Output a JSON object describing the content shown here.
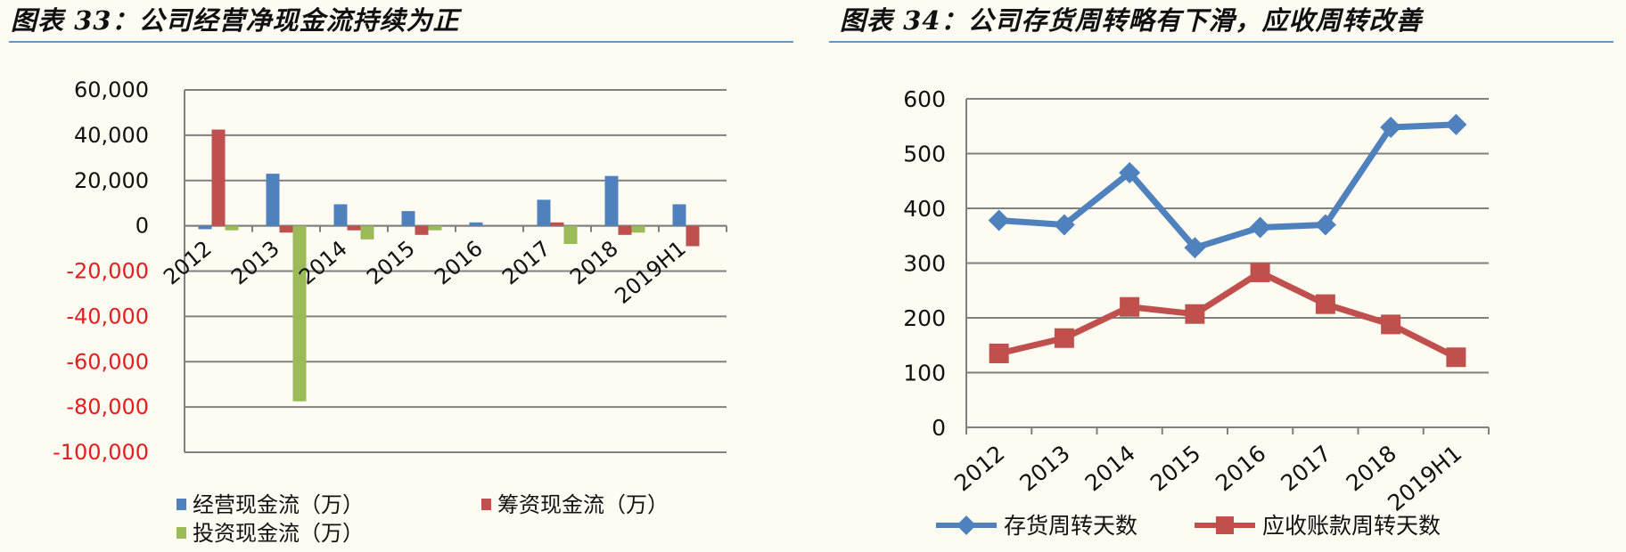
{
  "figures": [
    {
      "title": "图表 33：公司经营净现金流持续为正"
    },
    {
      "title": "图表 34：公司存货周转略有下滑，应收周转改善"
    }
  ],
  "colors": {
    "op": "#4f81bd",
    "fin": "#c0504d",
    "inv": "#9bbb59",
    "line1": "#4f81bd",
    "line2": "#c0504d",
    "neg_tick": "#e02020",
    "grid": "#808080",
    "rule": "#5b9bd5"
  },
  "chart_data": [
    {
      "type": "bar",
      "categories": [
        "2012",
        "2013",
        "2014",
        "2015",
        "2016",
        "2017",
        "2018",
        "2019H1"
      ],
      "series": [
        {
          "name": "经营现金流（万）",
          "values": [
            -1500,
            23000,
            9500,
            6500,
            1500,
            11500,
            22000,
            9500
          ]
        },
        {
          "name": "筹资现金流（万）",
          "values": [
            42500,
            -3000,
            -2000,
            -4000,
            0,
            1500,
            -4000,
            -9000
          ]
        },
        {
          "name": "投资现金流（万）",
          "values": [
            -2000,
            -77500,
            -6000,
            -2000,
            0,
            -8000,
            -3000,
            0
          ]
        }
      ],
      "ylim": [
        -100000,
        60000
      ],
      "yticks": [
        {
          "value": 60000,
          "label": "60,000"
        },
        {
          "value": 40000,
          "label": "40,000"
        },
        {
          "value": 20000,
          "label": "20,000"
        },
        {
          "value": 0,
          "label": "0"
        },
        {
          "value": -20000,
          "label": "-20,000"
        },
        {
          "value": -40000,
          "label": "-40,000"
        },
        {
          "value": -60000,
          "label": "-60,000"
        },
        {
          "value": -80000,
          "label": "-80,000"
        },
        {
          "value": -100000,
          "label": "-100,000"
        }
      ],
      "grid": true,
      "legend": "bottom"
    },
    {
      "type": "line",
      "categories": [
        "2012",
        "2013",
        "2014",
        "2015",
        "2016",
        "2017",
        "2018",
        "2019H1"
      ],
      "series": [
        {
          "name": "存货周转天数",
          "marker": "diamond",
          "values": [
            378,
            370,
            465,
            328,
            365,
            370,
            548,
            553
          ]
        },
        {
          "name": "应收账款周转天数",
          "marker": "square",
          "values": [
            135,
            163,
            220,
            207,
            283,
            225,
            188,
            128
          ]
        }
      ],
      "ylim": [
        0,
        600
      ],
      "yticks": [
        {
          "value": 600,
          "label": "600"
        },
        {
          "value": 500,
          "label": "500"
        },
        {
          "value": 400,
          "label": "400"
        },
        {
          "value": 300,
          "label": "300"
        },
        {
          "value": 200,
          "label": "200"
        },
        {
          "value": 100,
          "label": "100"
        },
        {
          "value": 0,
          "label": "0"
        }
      ],
      "grid": true,
      "legend": "bottom"
    }
  ]
}
